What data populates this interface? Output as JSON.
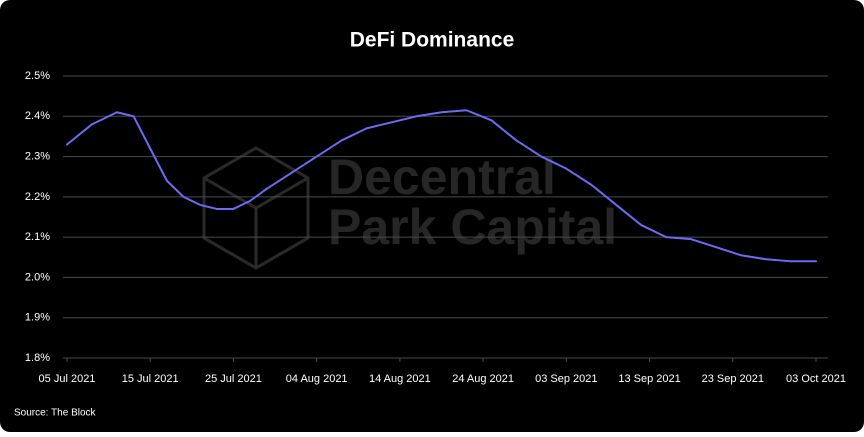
{
  "chart_data": {
    "type": "line",
    "title": "DeFi Dominance",
    "watermark": [
      "Decentral",
      "Park Capital"
    ],
    "source": "Source: The Block",
    "x": [
      "2021-07-05",
      "2021-07-08",
      "2021-07-11",
      "2021-07-13",
      "2021-07-15",
      "2021-07-17",
      "2021-07-19",
      "2021-07-21",
      "2021-07-23",
      "2021-07-25",
      "2021-07-27",
      "2021-07-29",
      "2021-08-01",
      "2021-08-04",
      "2021-08-07",
      "2021-08-10",
      "2021-08-13",
      "2021-08-16",
      "2021-08-19",
      "2021-08-22",
      "2021-08-25",
      "2021-08-28",
      "2021-08-31",
      "2021-09-03",
      "2021-09-06",
      "2021-09-09",
      "2021-09-12",
      "2021-09-15",
      "2021-09-18",
      "2021-09-21",
      "2021-09-24",
      "2021-09-27",
      "2021-09-30",
      "2021-10-03"
    ],
    "series": [
      {
        "name": "DeFi Dominance",
        "color": "#6b6bf5",
        "values": [
          2.33,
          2.38,
          2.41,
          2.4,
          2.32,
          2.24,
          2.2,
          2.18,
          2.17,
          2.17,
          2.19,
          2.22,
          2.26,
          2.3,
          2.34,
          2.37,
          2.385,
          2.4,
          2.41,
          2.415,
          2.39,
          2.34,
          2.3,
          2.27,
          2.23,
          2.18,
          2.13,
          2.1,
          2.095,
          2.075,
          2.055,
          2.045,
          2.04,
          2.04
        ]
      }
    ],
    "xlim": [
      "2021-07-05",
      "2021-10-03"
    ],
    "xticks": [
      {
        "value": "2021-07-05",
        "label": "05 Jul 2021"
      },
      {
        "value": "2021-07-15",
        "label": "15 Jul 2021"
      },
      {
        "value": "2021-07-25",
        "label": "25 Jul 2021"
      },
      {
        "value": "2021-08-04",
        "label": "04 Aug 2021"
      },
      {
        "value": "2021-08-14",
        "label": "14 Aug 2021"
      },
      {
        "value": "2021-08-24",
        "label": "24 Aug 2021"
      },
      {
        "value": "2021-09-03",
        "label": "03 Sep 2021"
      },
      {
        "value": "2021-09-13",
        "label": "13 Sep 2021"
      },
      {
        "value": "2021-09-23",
        "label": "23 Sep 2021"
      },
      {
        "value": "2021-10-03",
        "label": "03 Oct 2021"
      }
    ],
    "ylim": [
      1.8,
      2.5
    ],
    "yticks": [
      {
        "value": 1.8,
        "label": "1.8%"
      },
      {
        "value": 1.9,
        "label": "1.9%"
      },
      {
        "value": 2.0,
        "label": "2.0%"
      },
      {
        "value": 2.1,
        "label": "2.1%"
      },
      {
        "value": 2.2,
        "label": "2.2%"
      },
      {
        "value": 2.3,
        "label": "2.3%"
      },
      {
        "value": 2.4,
        "label": "2.4%"
      },
      {
        "value": 2.5,
        "label": "2.5%"
      }
    ],
    "grid": true
  }
}
